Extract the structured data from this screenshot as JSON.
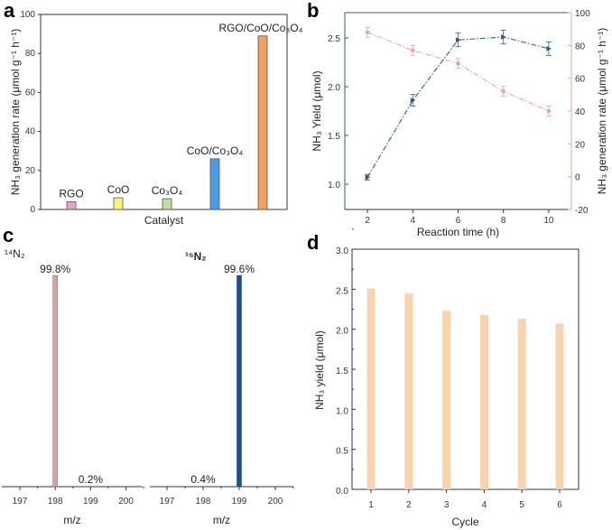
{
  "colors": {
    "pink": "#e8a4b2",
    "blue_b": "#2a5c8a",
    "pink_b": "#e0a8a8",
    "bar_d": "#f7d3ae",
    "c_pink": "#d9a3a3",
    "c_blue": "#1d4f8c"
  },
  "chart_data": [
    {
      "panel": "a",
      "type": "bar",
      "categories": [
        "RGO",
        "CoO",
        "Co₃O₄",
        "CoO/Co₃O₄",
        "RGO/CoO/Co₃O₄"
      ],
      "values": [
        4,
        6,
        5.5,
        26,
        89
      ],
      "bar_colors": [
        "#e8a4c4",
        "#fbf27a",
        "#b9e39a",
        "#4a9be8",
        "#f0a060"
      ],
      "xlabel": "Catalyst",
      "ylabel": "NH₃ generation rate (μmol g⁻¹ h⁻¹)",
      "ylim": [
        0,
        100
      ],
      "yticks": [
        0,
        20,
        40,
        60,
        80,
        100
      ]
    },
    {
      "panel": "b",
      "type": "line",
      "x": [
        2,
        4,
        6,
        8,
        10
      ],
      "xlabel": "Reaction time (h)",
      "xlim": [
        1,
        11
      ],
      "xticks": [
        2,
        4,
        6,
        8,
        10
      ],
      "series": [
        {
          "name": "NH₃ Yield",
          "axis": "left",
          "values": [
            1.07,
            1.86,
            2.48,
            2.51,
            2.39
          ],
          "errors": [
            0.03,
            0.06,
            0.07,
            0.07,
            0.07
          ]
        },
        {
          "name": "NH₃ generation rate",
          "axis": "right",
          "values": [
            88,
            77,
            69,
            52,
            40
          ],
          "errors": [
            3,
            3,
            3,
            3,
            3
          ]
        }
      ],
      "ylabel_left": "NH₃ Yield (μmol)",
      "ylim_left": [
        0.74,
        2.76
      ],
      "yticks_left": [
        "1.0",
        "1.5",
        "2.0",
        "2.5"
      ],
      "ylabel_right": "NH₃ generation rate (μmol g⁻¹ h⁻¹)",
      "ylim_right": [
        -20,
        100
      ],
      "yticks_right": [
        -20,
        0,
        20,
        40,
        60,
        80,
        100
      ]
    },
    {
      "panel": "c",
      "type": "bar",
      "subplots": [
        {
          "label": "¹⁴N₂",
          "peak_mz": 198,
          "peak_label": "99.8%",
          "minor_label": "0.2%",
          "minor_mz": 199,
          "xticks": [
            197,
            198,
            199,
            200
          ],
          "xlabel": "m/z"
        },
        {
          "label": "¹⁵N₂",
          "peak_mz": 199,
          "peak_label": "99.6%",
          "minor_label": "0.4%",
          "minor_mz": 198,
          "xticks": [
            197,
            198,
            199,
            200
          ],
          "xlabel": "m/z"
        }
      ]
    },
    {
      "panel": "d",
      "type": "bar",
      "categories": [
        "1",
        "2",
        "3",
        "4",
        "5",
        "6"
      ],
      "values": [
        2.51,
        2.45,
        2.23,
        2.18,
        2.13,
        2.07
      ],
      "xlabel": "Cycle",
      "ylabel": "NH₃ yield (μmol)",
      "ylim": [
        0,
        3.0
      ],
      "yticks": [
        "0.0",
        "0.5",
        "1.0",
        "1.5",
        "2.0",
        "2.5",
        "3.0"
      ]
    }
  ],
  "panel_labels": [
    "a",
    "b",
    "c",
    "d"
  ]
}
